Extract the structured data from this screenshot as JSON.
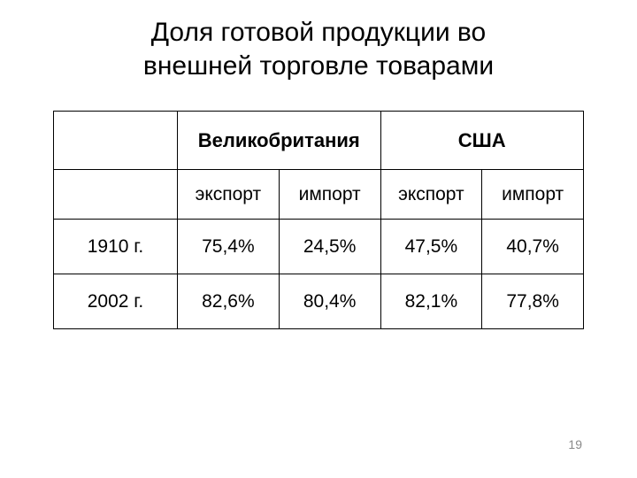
{
  "title_line1": "Доля готовой продукции во",
  "title_line2": "внешней торговле товарами",
  "table": {
    "countries": [
      "Великобритания",
      "США"
    ],
    "subheaders": [
      "экспорт",
      "импорт",
      "экспорт",
      "импорт"
    ],
    "rows": [
      {
        "label": "1910 г.",
        "cells": [
          "75,4%",
          "24,5%",
          "47,5%",
          "40,7%"
        ]
      },
      {
        "label": "2002 г.",
        "cells": [
          "82,6%",
          "80,4%",
          "82,1%",
          "77,8%"
        ]
      }
    ]
  },
  "page_number": "19",
  "colors": {
    "background": "#ffffff",
    "text": "#000000",
    "border": "#000000",
    "page_num": "#898989"
  },
  "typography": {
    "title_fontsize": 30,
    "header_fontsize": 22,
    "body_fontsize": 21,
    "page_num_fontsize": 14,
    "font_family": "Arial"
  }
}
